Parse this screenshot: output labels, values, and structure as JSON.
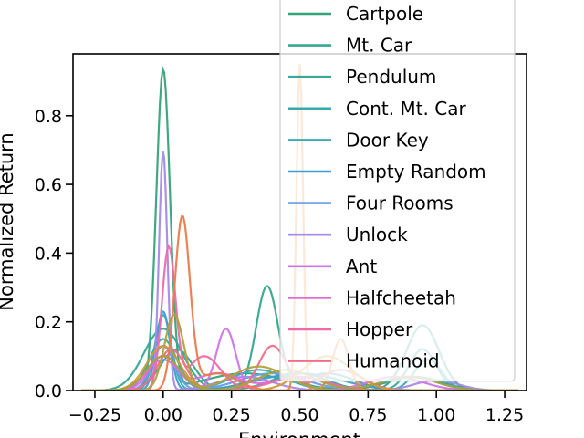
{
  "chart_data": {
    "type": "line",
    "subtype": "kde",
    "xlabel": "Environment",
    "ylabel": "Normalized Return",
    "xlim": [
      -0.33,
      1.33
    ],
    "ylim": [
      0,
      0.98
    ],
    "xticks": [
      -0.25,
      0.0,
      0.25,
      0.5,
      0.75,
      1.0,
      1.25
    ],
    "xtick_labels": [
      "−0.25",
      "0.00",
      "0.25",
      "0.50",
      "0.75",
      "1.00",
      "1.25"
    ],
    "yticks": [
      0.0,
      0.2,
      0.4,
      0.6,
      0.8
    ],
    "ytick_labels": [
      "0.0",
      "0.2",
      "0.4",
      "0.6",
      "0.8"
    ],
    "grid": false,
    "legend_position": "top-right",
    "series": [
      {
        "name": "Cartpole",
        "color": "#35a37a",
        "peaks": [
          [
            0.0,
            0.93,
            0.025
          ],
          [
            0.3,
            0.05,
            0.15
          ],
          [
            0.92,
            0.04,
            0.1
          ]
        ]
      },
      {
        "name": "Mt. Car",
        "color": "#36a68e",
        "peaks": [
          [
            0.38,
            0.3,
            0.04
          ],
          [
            0.05,
            0.12,
            0.06
          ],
          [
            0.6,
            0.05,
            0.1
          ]
        ]
      },
      {
        "name": "Pendulum",
        "color": "#37a79b",
        "peaks": [
          [
            0.0,
            0.18,
            0.07
          ],
          [
            0.95,
            0.19,
            0.06
          ],
          [
            0.5,
            0.05,
            0.1
          ]
        ]
      },
      {
        "name": "Cont. Mt. Car",
        "color": "#38a9a8",
        "peaks": [
          [
            0.0,
            0.15,
            0.05
          ],
          [
            0.95,
            0.12,
            0.05
          ],
          [
            0.4,
            0.04,
            0.1
          ]
        ]
      },
      {
        "name": "Door Key",
        "color": "#3aabb6",
        "peaks": [
          [
            0.0,
            0.22,
            0.03
          ],
          [
            0.35,
            0.06,
            0.1
          ],
          [
            0.97,
            0.09,
            0.05
          ]
        ]
      },
      {
        "name": "Empty Random",
        "color": "#3d9ed1",
        "peaks": [
          [
            0.0,
            0.23,
            0.025
          ],
          [
            0.5,
            0.05,
            0.15
          ]
        ]
      },
      {
        "name": "Four Rooms",
        "color": "#6a9be8",
        "peaks": [
          [
            0.0,
            0.13,
            0.04
          ],
          [
            0.4,
            0.05,
            0.12
          ],
          [
            0.9,
            0.04,
            0.1
          ]
        ]
      },
      {
        "name": "Unlock",
        "color": "#a48be8",
        "peaks": [
          [
            0.0,
            0.7,
            0.015
          ],
          [
            0.3,
            0.04,
            0.1
          ],
          [
            1.0,
            0.03,
            0.08
          ]
        ]
      },
      {
        "name": "Ant",
        "color": "#cd76e6",
        "peaks": [
          [
            0.23,
            0.18,
            0.035
          ],
          [
            0.0,
            0.09,
            0.06
          ],
          [
            0.85,
            0.04,
            0.1
          ]
        ]
      },
      {
        "name": "Halfcheetah",
        "color": "#e56ad8",
        "peaks": [
          [
            0.0,
            0.1,
            0.05
          ],
          [
            0.2,
            0.05,
            0.08
          ],
          [
            0.5,
            0.04,
            0.1
          ]
        ]
      },
      {
        "name": "Hopper",
        "color": "#ec6aa9",
        "peaks": [
          [
            0.02,
            0.41,
            0.025
          ],
          [
            0.15,
            0.1,
            0.06
          ],
          [
            0.5,
            0.04,
            0.1
          ]
        ]
      },
      {
        "name": "Humanoid",
        "color": "#ee6f87",
        "peaks": [
          [
            0.03,
            0.12,
            0.05
          ],
          [
            0.4,
            0.13,
            0.05
          ],
          [
            0.65,
            0.06,
            0.08
          ]
        ]
      },
      {
        "name": "",
        "color": "#eb7a4c",
        "peaks": [
          [
            0.07,
            0.5,
            0.028
          ],
          [
            0.2,
            0.05,
            0.07
          ]
        ]
      },
      {
        "name": "",
        "color": "#e98a3e",
        "peaks": [
          [
            0.5,
            0.95,
            0.012
          ],
          [
            0.65,
            0.15,
            0.03
          ]
        ]
      },
      {
        "name": "",
        "color": "#cf9b3a",
        "peaks": [
          [
            0.0,
            0.13,
            0.06
          ],
          [
            0.6,
            0.1,
            0.09
          ]
        ]
      },
      {
        "name": "",
        "color": "#b4a03b",
        "peaks": [
          [
            0.04,
            0.22,
            0.035
          ],
          [
            0.35,
            0.07,
            0.1
          ]
        ]
      },
      {
        "name": "",
        "color": "#a7a23c",
        "peaks": [
          [
            0.0,
            0.1,
            0.06
          ],
          [
            0.45,
            0.06,
            0.1
          ],
          [
            0.9,
            0.04,
            0.1
          ]
        ]
      }
    ]
  }
}
